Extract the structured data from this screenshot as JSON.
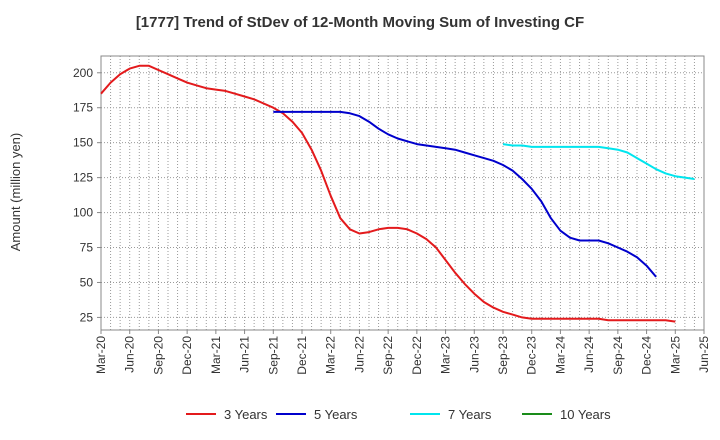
{
  "chart_data": {
    "type": "line",
    "title": "[1777]  Trend of StDev of 12-Month Moving Sum of Investing CF",
    "ylabel": "Amount (million yen)",
    "xlabel": "",
    "ylim": [
      16,
      212
    ],
    "yticks": [
      25,
      50,
      75,
      100,
      125,
      150,
      175,
      200
    ],
    "x_tick_labels": [
      "Mar-20",
      "Jun-20",
      "Sep-20",
      "Dec-20",
      "Mar-21",
      "Jun-21",
      "Sep-21",
      "Dec-21",
      "Mar-22",
      "Jun-22",
      "Sep-22",
      "Dec-22",
      "Mar-23",
      "Jun-23",
      "Sep-23",
      "Dec-23",
      "Mar-24",
      "Jun-24",
      "Sep-24",
      "Dec-24",
      "Mar-25",
      "Jun-25"
    ],
    "grid": true,
    "legend_position": "bottom",
    "series": [
      {
        "name": "3 Years",
        "color": "#e31a1c",
        "start_index": 0,
        "values": [
          185,
          193,
          199,
          203,
          205,
          205,
          202,
          199,
          196,
          193,
          191,
          189,
          188,
          187,
          185,
          183,
          181,
          178,
          175,
          171,
          165,
          157,
          145,
          130,
          112,
          96,
          88,
          85,
          86,
          88,
          89,
          89,
          88,
          85,
          81,
          75,
          66,
          57,
          49,
          42,
          36,
          32,
          29,
          27,
          25,
          24,
          24,
          24,
          24,
          24,
          24,
          24,
          24,
          23,
          23,
          23,
          23,
          23,
          23,
          23,
          22
        ]
      },
      {
        "name": "5 Years",
        "color": "#0000cc",
        "start_index": 18,
        "values": [
          172,
          172,
          172,
          172,
          172,
          172,
          172,
          172,
          171,
          169,
          165,
          160,
          156,
          153,
          151,
          149,
          148,
          147,
          146,
          145,
          143,
          141,
          139,
          137,
          134,
          130,
          124,
          117,
          108,
          96,
          87,
          82,
          80,
          80,
          80,
          78,
          75,
          72,
          68,
          62,
          54
        ]
      },
      {
        "name": "7 Years",
        "color": "#00e5ee",
        "start_index": 42,
        "values": [
          149,
          148,
          148,
          147,
          147,
          147,
          147,
          147,
          147,
          147,
          147,
          146,
          145,
          143,
          139,
          135,
          131,
          128,
          126,
          125,
          124
        ]
      },
      {
        "name": "10 Years",
        "color": "#1a8c1a",
        "start_index": 0,
        "values": []
      }
    ]
  }
}
